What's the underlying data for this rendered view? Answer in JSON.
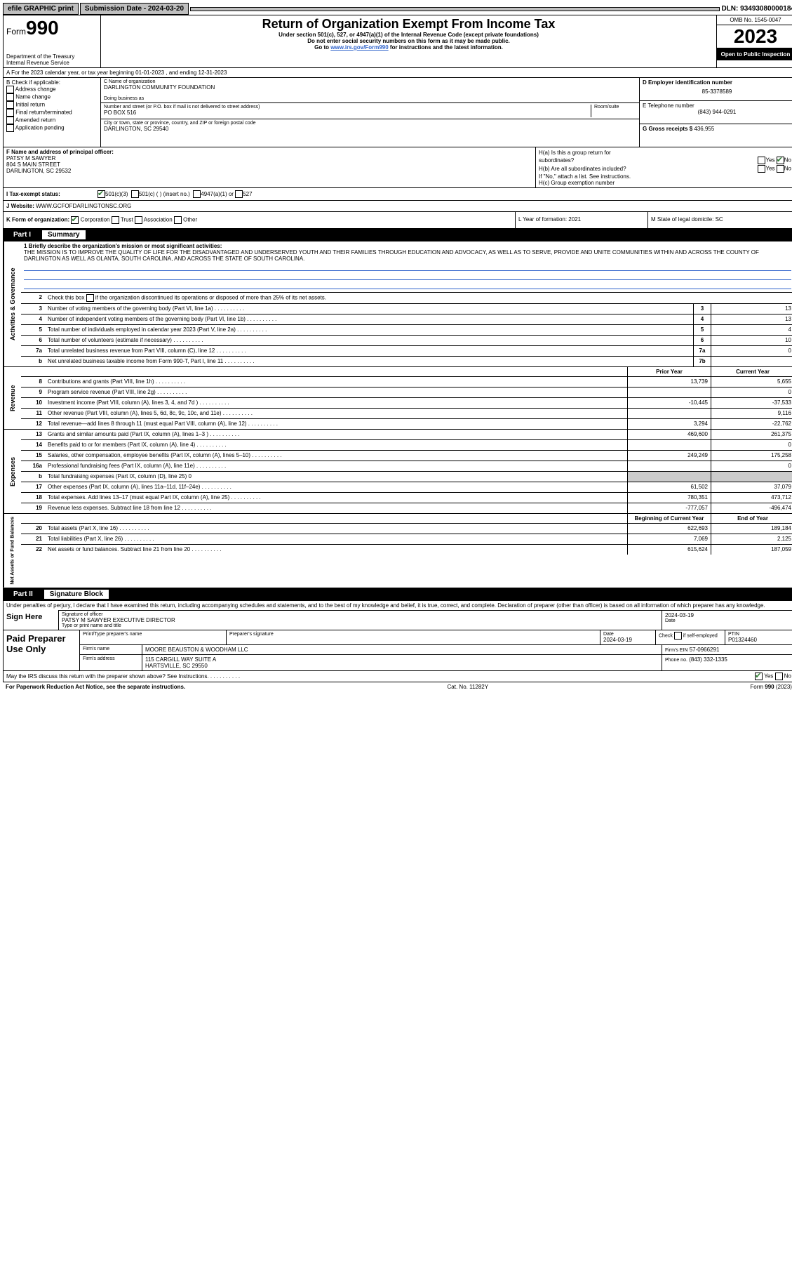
{
  "topbar": {
    "efile": "efile GRAPHIC print",
    "submission": "Submission Date - 2024-03-20",
    "dln": "DLN: 93493080000184"
  },
  "header": {
    "form": "Form",
    "formnum": "990",
    "dept": "Department of the Treasury",
    "irs": "Internal Revenue Service",
    "title": "Return of Organization Exempt From Income Tax",
    "sub1": "Under section 501(c), 527, or 4947(a)(1) of the Internal Revenue Code (except private foundations)",
    "sub2": "Do not enter social security numbers on this form as it may be made public.",
    "sub3_prefix": "Go to ",
    "sub3_link": "www.irs.gov/Form990",
    "sub3_suffix": " for instructions and the latest information.",
    "omb": "OMB No. 1545-0047",
    "year": "2023",
    "open": "Open to Public Inspection"
  },
  "rowA": "A For the 2023 calendar year, or tax year beginning 01-01-2023    , and ending 12-31-2023",
  "boxB": {
    "label": "B Check if applicable:",
    "opts": [
      "Address change",
      "Name change",
      "Initial return",
      "Final return/terminated",
      "Amended return",
      "Application pending"
    ]
  },
  "boxC": {
    "name_label": "C Name of organization",
    "name": "DARLINGTON COMMUNITY FOUNDATION",
    "dba": "Doing business as",
    "addr_label": "Number and street (or P.O. box if mail is not delivered to street address)",
    "room": "Room/suite",
    "addr": "PO BOX 516",
    "city_label": "City or town, state or province, country, and ZIP or foreign postal code",
    "city": "DARLINGTON, SC  29540"
  },
  "boxD": {
    "label": "D Employer identification number",
    "ein": "85-3378589",
    "phone_label": "E Telephone number",
    "phone": "(843) 944-0291",
    "gross_label": "G Gross receipts $",
    "gross": "436,955"
  },
  "boxF": {
    "label": "F Name and address of principal officer:",
    "name": "PATSY M SAWYER",
    "addr1": "804 S MAIN STREET",
    "addr2": "DARLINGTON, SC  29532"
  },
  "boxH": {
    "a1": "H(a)  Is this a group return for",
    "a2": "subordinates?",
    "b": "H(b)  Are all subordinates included?",
    "note": "If \"No,\" attach a list. See instructions.",
    "c": "H(c)  Group exemption number",
    "yes": "Yes",
    "no": "No"
  },
  "rowI": {
    "label": "I   Tax-exempt status:",
    "o1": "501(c)(3)",
    "o2": "501(c) (  ) (insert no.)",
    "o3": "4947(a)(1) or",
    "o4": "527"
  },
  "rowJ": {
    "label": "J   Website:",
    "site": "WWW.GCFOFDARLINGTONSC.ORG"
  },
  "rowK": {
    "label": "K Form of organization:",
    "o1": "Corporation",
    "o2": "Trust",
    "o3": "Association",
    "o4": "Other",
    "l": "L Year of formation: 2021",
    "m": "M State of legal domicile: SC"
  },
  "part1": {
    "num": "Part I",
    "title": "Summary"
  },
  "summary": {
    "line1_label": "1  Briefly describe the organization's mission or most significant activities:",
    "mission": "THE MISSION IS TO IMPROVE THE QUALITY OF LIFE FOR THE DISADVANTAGED AND UNDERSERVED YOUTH AND THEIR FAMILIES THROUGH EDUCATION AND ADVOCACY, AS WELL AS TO SERVE, PROVIDE AND UNITE COMMUNITIES WITHIN AND ACROSS THE COUNTY OF DARLINGTON AS WELL AS OLANTA, SOUTH CAROLINA, AND ACROSS THE STATE OF SOUTH CAROLINA.",
    "line2": "Check this box       if the organization discontinued its operations or disposed of more than 25% of its net assets.",
    "governance": [
      {
        "n": "3",
        "d": "Number of voting members of the governing body (Part VI, line 1a)",
        "b": "3",
        "v": "13"
      },
      {
        "n": "4",
        "d": "Number of independent voting members of the governing body (Part VI, line 1b)",
        "b": "4",
        "v": "13"
      },
      {
        "n": "5",
        "d": "Total number of individuals employed in calendar year 2023 (Part V, line 2a)",
        "b": "5",
        "v": "4"
      },
      {
        "n": "6",
        "d": "Total number of volunteers (estimate if necessary)",
        "b": "6",
        "v": "10"
      },
      {
        "n": "7a",
        "d": "Total unrelated business revenue from Part VIII, column (C), line 12",
        "b": "7a",
        "v": "0"
      },
      {
        "n": "b",
        "d": "Net unrelated business taxable income from Form 990-T, Part I, line 11",
        "b": "7b",
        "v": ""
      }
    ],
    "col_prior": "Prior Year",
    "col_current": "Current Year",
    "revenue": [
      {
        "n": "8",
        "d": "Contributions and grants (Part VIII, line 1h)",
        "p": "13,739",
        "c": "5,655"
      },
      {
        "n": "9",
        "d": "Program service revenue (Part VIII, line 2g)",
        "p": "",
        "c": "0"
      },
      {
        "n": "10",
        "d": "Investment income (Part VIII, column (A), lines 3, 4, and 7d )",
        "p": "-10,445",
        "c": "-37,533"
      },
      {
        "n": "11",
        "d": "Other revenue (Part VIII, column (A), lines 5, 6d, 8c, 9c, 10c, and 11e)",
        "p": "",
        "c": "9,116"
      },
      {
        "n": "12",
        "d": "Total revenue—add lines 8 through 11 (must equal Part VIII, column (A), line 12)",
        "p": "3,294",
        "c": "-22,762"
      }
    ],
    "expenses": [
      {
        "n": "13",
        "d": "Grants and similar amounts paid (Part IX, column (A), lines 1–3 )",
        "p": "469,600",
        "c": "261,375"
      },
      {
        "n": "14",
        "d": "Benefits paid to or for members (Part IX, column (A), line 4)",
        "p": "",
        "c": "0"
      },
      {
        "n": "15",
        "d": "Salaries, other compensation, employee benefits (Part IX, column (A), lines 5–10)",
        "p": "249,249",
        "c": "175,258"
      },
      {
        "n": "16a",
        "d": "Professional fundraising fees (Part IX, column (A), line 11e)",
        "p": "",
        "c": "0"
      },
      {
        "n": "b",
        "d": "Total fundraising expenses (Part IX, column (D), line 25) 0",
        "p": null,
        "c": null
      },
      {
        "n": "17",
        "d": "Other expenses (Part IX, column (A), lines 11a–11d, 11f–24e)",
        "p": "61,502",
        "c": "37,079"
      },
      {
        "n": "18",
        "d": "Total expenses. Add lines 13–17 (must equal Part IX, column (A), line 25)",
        "p": "780,351",
        "c": "473,712"
      },
      {
        "n": "19",
        "d": "Revenue less expenses. Subtract line 18 from line 12",
        "p": "-777,057",
        "c": "-496,474"
      }
    ],
    "col_begin": "Beginning of Current Year",
    "col_end": "End of Year",
    "netassets": [
      {
        "n": "20",
        "d": "Total assets (Part X, line 16)",
        "p": "622,693",
        "c": "189,184"
      },
      {
        "n": "21",
        "d": "Total liabilities (Part X, line 26)",
        "p": "7,069",
        "c": "2,125"
      },
      {
        "n": "22",
        "d": "Net assets or fund balances. Subtract line 21 from line 20",
        "p": "615,624",
        "c": "187,059"
      }
    ]
  },
  "sidelabels": {
    "gov": "Activities & Governance",
    "rev": "Revenue",
    "exp": "Expenses",
    "net": "Net Assets or Fund Balances"
  },
  "part2": {
    "num": "Part II",
    "title": "Signature Block"
  },
  "sig": {
    "text": "Under penalties of perjury, I declare that I have examined this return, including accompanying schedules and statements, and to the best of my knowledge and belief, it is true, correct, and complete. Declaration of preparer (other than officer) is based on all information of which preparer has any knowledge.",
    "sign": "Sign Here",
    "sig_of": "Signature of officer",
    "officer": "PATSY M SAWYER  EXECUTIVE DIRECTOR",
    "type": "Type or print name and title",
    "date_label": "Date",
    "date": "2024-03-19"
  },
  "prep": {
    "label": "Paid Preparer Use Only",
    "name_label": "Print/Type preparer's name",
    "sig_label": "Preparer's signature",
    "date_label": "Date",
    "date": "2024-03-19",
    "check_label": "Check         if self-employed",
    "ptin_label": "PTIN",
    "ptin": "P01324460",
    "firm_label": "Firm's name",
    "firm": "MOORE BEAUSTON & WOODHAM LLC",
    "ein_label": "Firm's EIN",
    "ein": "57-0966291",
    "addr_label": "Firm's address",
    "addr": "115 CARGILL WAY SUITE A",
    "addr2": "HARTSVILLE, SC  29550",
    "phone_label": "Phone no.",
    "phone": "(843) 332-1335"
  },
  "footer": {
    "discuss": "May the IRS discuss this return with the preparer shown above? See Instructions.",
    "yes": "Yes",
    "no": "No",
    "pra": "For Paperwork Reduction Act Notice, see the separate instructions.",
    "cat": "Cat. No. 11282Y",
    "form": "Form 990 (2023)"
  }
}
